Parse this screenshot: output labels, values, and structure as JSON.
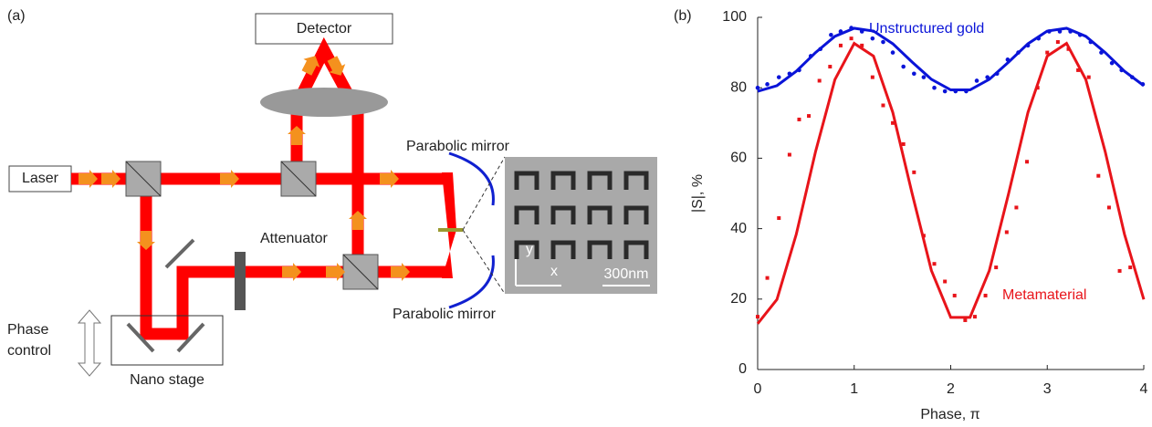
{
  "diagram": {
    "panel_label": "(a)",
    "detector": "Detector",
    "laser": "Laser",
    "mirror_top": "Parabolic mirror",
    "mirror_bottom": "Parabolic mirror",
    "attenuator": "Attenuator",
    "phase": "Phase",
    "control": "control",
    "stage": "Nano stage",
    "axis_y": "y",
    "axis_x": "x",
    "scale": "300nm"
  },
  "chart_data": {
    "type": "scatter",
    "panel_label": "(b)",
    "xlabel": "Phase, π",
    "ylabel": "|S|, %",
    "xlim": [
      0,
      4
    ],
    "xticks": [
      0,
      1,
      2,
      3,
      4
    ],
    "ylim": [
      0,
      100
    ],
    "yticks": [
      0,
      20,
      40,
      60,
      80,
      100
    ],
    "series": [
      {
        "name": "Unstructured gold",
        "color": "#0a14d8",
        "marker": "circle",
        "x": [
          0,
          0.1,
          0.22,
          0.33,
          0.43,
          0.55,
          0.65,
          0.76,
          0.86,
          0.97,
          1.08,
          1.19,
          1.3,
          1.4,
          1.51,
          1.62,
          1.72,
          1.83,
          1.94,
          2.05,
          2.16,
          2.27,
          2.38,
          2.48,
          2.59,
          2.7,
          2.8,
          2.91,
          3.02,
          3.13,
          3.24,
          3.34,
          3.45,
          3.56,
          3.67,
          3.77,
          3.88,
          3.99
        ],
        "values": [
          80,
          81,
          83,
          84,
          85,
          89,
          91,
          95,
          96,
          97,
          96,
          94,
          93,
          90,
          86,
          84,
          83,
          80,
          79,
          79,
          79,
          82,
          83,
          84,
          88,
          90,
          92,
          94,
          96,
          96,
          96,
          95,
          93,
          90,
          87,
          85,
          83,
          81
        ]
      },
      {
        "name": "Metamaterial",
        "color": "#e8141a",
        "marker": "square",
        "x": [
          0,
          0.1,
          0.22,
          0.33,
          0.43,
          0.53,
          0.64,
          0.75,
          0.86,
          0.97,
          1.08,
          1.19,
          1.3,
          1.4,
          1.51,
          1.62,
          1.72,
          1.83,
          1.94,
          2.04,
          2.15,
          2.25,
          2.36,
          2.47,
          2.58,
          2.68,
          2.79,
          2.9,
          3.0,
          3.11,
          3.22,
          3.32,
          3.43,
          3.53,
          3.64,
          3.75,
          3.86
        ],
        "values": [
          15,
          26,
          43,
          61,
          71,
          72,
          82,
          86,
          92,
          94,
          92,
          83,
          75,
          70,
          64,
          56,
          38,
          30,
          25,
          21,
          14,
          15,
          21,
          29,
          39,
          46,
          59,
          80,
          90,
          93,
          91,
          85,
          83,
          55,
          46,
          28,
          29
        ]
      }
    ],
    "fits": [
      {
        "color": "#0a14d8",
        "x": [
          0,
          0.2,
          0.4,
          0.6,
          0.8,
          1.0,
          1.2,
          1.4,
          1.6,
          1.8,
          2.0,
          2.2,
          2.4,
          2.6,
          2.8,
          3.0,
          3.2,
          3.4,
          3.6,
          3.8,
          4.0
        ],
        "values": [
          79,
          80.6,
          84.7,
          90.0,
          94.6,
          96.9,
          96.1,
          92.5,
          87.3,
          82.4,
          79.4,
          79.4,
          82.4,
          87.3,
          92.5,
          96.1,
          96.9,
          94.6,
          90.0,
          84.7,
          80.6
        ]
      },
      {
        "color": "#e8141a",
        "x": [
          0,
          0.2,
          0.4,
          0.6,
          0.8,
          1.0,
          1.2,
          1.4,
          1.6,
          1.8,
          2.0,
          2.2,
          2.4,
          2.6,
          2.8,
          3.0,
          3.2,
          3.4,
          3.6,
          3.8,
          4.0
        ],
        "values": [
          13,
          19.9,
          38.4,
          61.9,
          82.3,
          92.6,
          89.0,
          73.0,
          50.0,
          28.1,
          14.8,
          14.8,
          28.1,
          50.0,
          73.0,
          89.0,
          92.6,
          82.3,
          61.9,
          38.4,
          19.9
        ]
      }
    ]
  }
}
